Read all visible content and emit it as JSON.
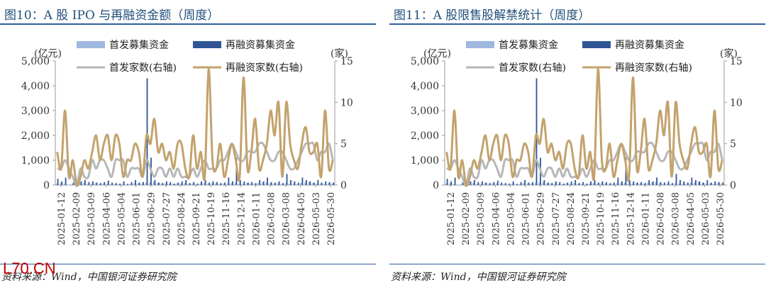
{
  "panels": [
    {
      "title": "图10：A 股 IPO 与再融资金额（周度）",
      "source": "资料来源：Wind，中国银河证券研究院"
    },
    {
      "title": "图11：A 股限售股解禁统计（周度）",
      "source": "资料来源：Wind，中国银河证券研究院"
    }
  ],
  "watermark": "L70.CN",
  "chart_data": [
    {
      "type": "bar+line",
      "left_unit": "(亿元)",
      "right_unit": "(家)",
      "left_ylim": [
        0,
        5000
      ],
      "left_ticks": [
        "0",
        "1,000",
        "2,000",
        "3,000",
        "4,000",
        "5,000"
      ],
      "right_ylim": [
        0,
        15
      ],
      "right_ticks": [
        "0",
        "5",
        "10",
        "15"
      ],
      "tick_labels": [
        "2025-01-12",
        "2025-02-09",
        "2025-03-09",
        "2025-04-06",
        "2025-05-04",
        "2025-06-01",
        "2025-06-29",
        "2025-07-27",
        "2025-08-24",
        "2025-09-21",
        "2025-10-19",
        "2025-11-16",
        "2025-12-14",
        "2026-01-11",
        "2026-02-08",
        "2026-03-08",
        "2026-04-05",
        "2026-05-03",
        "2026-05-30"
      ],
      "series": [
        {
          "name": "首发募集资金",
          "kind": "bar",
          "axis": "left",
          "color": "#9fb8df",
          "values": [
            60,
            80,
            50,
            0,
            30,
            70,
            100,
            90,
            60,
            50,
            80,
            40,
            60,
            70,
            50,
            40,
            30,
            60,
            20,
            50,
            80,
            70,
            60,
            90,
            110,
            120,
            80,
            70,
            60,
            50,
            40,
            70,
            60,
            80,
            50,
            60,
            40,
            70,
            90,
            60,
            80,
            70,
            50,
            60,
            70,
            80,
            90,
            70,
            60,
            80,
            70,
            60,
            90,
            100,
            120,
            80,
            60,
            70,
            50,
            80,
            60,
            70,
            50,
            90,
            100,
            120,
            80,
            60,
            70,
            50,
            80,
            60
          ]
        },
        {
          "name": "再融资募集资金",
          "kind": "bar",
          "axis": "left",
          "color": "#2f5597",
          "values": [
            250,
            150,
            300,
            0,
            100,
            50,
            150,
            200,
            120,
            150,
            100,
            80,
            120,
            180,
            100,
            80,
            60,
            150,
            50,
            120,
            200,
            100,
            120,
            4300,
            1100,
            200,
            100,
            80,
            150,
            120,
            60,
            100,
            150,
            200,
            80,
            120,
            60,
            150,
            200,
            100,
            150,
            120,
            80,
            100,
            300,
            150,
            1100,
            200,
            150,
            100,
            120,
            80,
            200,
            150,
            300,
            120,
            100,
            150,
            80,
            450,
            200,
            150,
            100,
            300,
            200,
            150,
            100,
            200,
            100,
            150,
            120,
            100
          ]
        },
        {
          "name": "首发家数(右轴)",
          "kind": "line",
          "axis": "right",
          "color": "#b7b7b7",
          "values": [
            2,
            2,
            3,
            2,
            1,
            0,
            2,
            1,
            1,
            3,
            2,
            3,
            3,
            2,
            1,
            3,
            3,
            3,
            1,
            2,
            2,
            2,
            1,
            3,
            2,
            1,
            2,
            2,
            1,
            2,
            1,
            2,
            1,
            1,
            1,
            2,
            1,
            2,
            3,
            2,
            2,
            2,
            3,
            3,
            4,
            5,
            4,
            3,
            3,
            4,
            4,
            4,
            5,
            5,
            4,
            3,
            3,
            4,
            4,
            3,
            2,
            2,
            3,
            4,
            5,
            5,
            5,
            3,
            4,
            4,
            5,
            3
          ]
        },
        {
          "name": "再融资家数(右轴)",
          "kind": "line",
          "axis": "right",
          "color": "#c3a26d",
          "values": [
            4,
            2,
            9,
            1,
            3,
            0,
            1,
            3,
            2,
            4,
            6,
            3,
            5,
            6,
            3,
            6,
            5,
            1,
            3,
            3,
            5,
            4,
            1,
            6,
            5,
            8,
            4,
            5,
            3,
            4,
            2,
            5,
            5,
            2,
            1,
            6,
            2,
            4,
            1,
            14,
            3,
            2,
            5,
            1,
            3,
            5,
            3,
            1,
            13,
            2,
            4,
            8,
            2,
            3,
            5,
            9,
            6,
            10,
            1,
            10,
            5,
            3,
            2,
            5,
            7,
            4,
            4,
            5,
            1,
            9,
            2,
            3
          ]
        }
      ]
    },
    {
      "type": "bar+line",
      "left_unit": "(亿元)",
      "right_unit": "(家)",
      "left_ylim": [
        0,
        5000
      ],
      "left_ticks": [
        "0",
        "1,000",
        "2,000",
        "3,000",
        "4,000",
        "5,000"
      ],
      "right_ylim": [
        0,
        15
      ],
      "right_ticks": [
        "0",
        "5",
        "10",
        "15"
      ],
      "tick_labels": [
        "2025-01-12",
        "2025-02-09",
        "2025-03-09",
        "2025-04-06",
        "2025-05-04",
        "2025-06-01",
        "2025-06-29",
        "2025-07-27",
        "2025-08-24",
        "2025-09-21",
        "2025-10-19",
        "2025-11-16",
        "2025-12-14",
        "2026-01-11",
        "2026-02-08",
        "2026-03-08",
        "2026-04-05",
        "2026-05-03",
        "2026-05-30"
      ],
      "series": [
        {
          "name": "首发募集资金",
          "kind": "bar",
          "axis": "left",
          "color": "#9fb8df",
          "values": [
            60,
            80,
            50,
            0,
            30,
            70,
            100,
            90,
            60,
            50,
            80,
            40,
            60,
            70,
            50,
            40,
            30,
            60,
            20,
            50,
            80,
            70,
            60,
            90,
            110,
            120,
            80,
            70,
            60,
            50,
            40,
            70,
            60,
            80,
            50,
            60,
            40,
            70,
            90,
            60,
            80,
            70,
            50,
            60,
            70,
            80,
            90,
            70,
            60,
            80,
            70,
            60,
            90,
            100,
            120,
            80,
            60,
            70,
            50,
            80,
            60,
            70,
            50,
            90,
            100,
            120,
            80,
            60,
            70,
            50,
            80,
            60
          ]
        },
        {
          "name": "再融资募集资金",
          "kind": "bar",
          "axis": "left",
          "color": "#2f5597",
          "values": [
            250,
            150,
            300,
            0,
            100,
            50,
            150,
            200,
            120,
            150,
            100,
            80,
            120,
            180,
            100,
            80,
            60,
            150,
            50,
            120,
            200,
            100,
            120,
            4300,
            1100,
            200,
            100,
            80,
            150,
            120,
            60,
            100,
            150,
            200,
            80,
            120,
            60,
            150,
            200,
            100,
            150,
            120,
            80,
            100,
            300,
            150,
            1100,
            200,
            150,
            100,
            120,
            80,
            200,
            150,
            300,
            120,
            100,
            150,
            80,
            450,
            200,
            150,
            100,
            300,
            200,
            150,
            100,
            200,
            100,
            150,
            120,
            100
          ]
        },
        {
          "name": "首发家数(右轴)",
          "kind": "line",
          "axis": "right",
          "color": "#b7b7b7",
          "values": [
            2,
            2,
            3,
            2,
            1,
            0,
            2,
            1,
            1,
            3,
            2,
            3,
            3,
            2,
            1,
            3,
            3,
            3,
            1,
            2,
            2,
            2,
            1,
            3,
            2,
            1,
            2,
            2,
            1,
            2,
            1,
            2,
            1,
            1,
            1,
            2,
            1,
            2,
            3,
            2,
            2,
            2,
            3,
            3,
            4,
            5,
            4,
            3,
            3,
            4,
            4,
            4,
            5,
            5,
            4,
            3,
            3,
            4,
            4,
            3,
            2,
            2,
            3,
            4,
            5,
            5,
            5,
            3,
            4,
            4,
            5,
            3
          ]
        },
        {
          "name": "再融资家数(右轴)",
          "kind": "line",
          "axis": "right",
          "color": "#c3a26d",
          "values": [
            4,
            2,
            9,
            1,
            3,
            0,
            1,
            3,
            2,
            4,
            6,
            3,
            5,
            6,
            3,
            6,
            5,
            1,
            3,
            3,
            5,
            4,
            1,
            6,
            5,
            8,
            4,
            5,
            3,
            4,
            2,
            5,
            5,
            2,
            1,
            6,
            2,
            4,
            1,
            14,
            3,
            2,
            5,
            1,
            3,
            5,
            3,
            1,
            13,
            2,
            4,
            8,
            2,
            3,
            5,
            9,
            6,
            10,
            1,
            10,
            5,
            3,
            2,
            5,
            7,
            4,
            4,
            5,
            1,
            9,
            2,
            3
          ]
        }
      ]
    }
  ]
}
